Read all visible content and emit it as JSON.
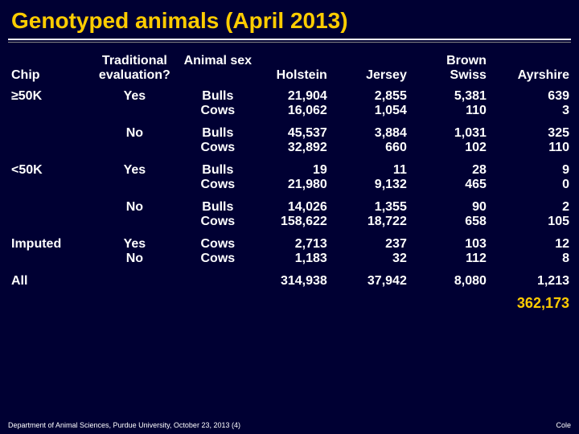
{
  "title": "Genotyped animals (April 2013)",
  "headers": {
    "chip": "Chip",
    "trad": "Traditional evaluation?",
    "sex": "Animal sex",
    "holstein": "Holstein",
    "jersey": "Jersey",
    "brownswiss_l1": "Brown",
    "brownswiss_l2": "Swiss",
    "ayrshire": "Ayrshire"
  },
  "rows": {
    "r1": {
      "chip": "≥50K",
      "trad": "Yes",
      "sex": "Bulls",
      "h": "21,904",
      "j": "2,855",
      "b": "5,381",
      "a": "639"
    },
    "r2": {
      "chip": "",
      "trad": "",
      "sex": "Cows",
      "h": "16,062",
      "j": "1,054",
      "b": "110",
      "a": "3"
    },
    "r3": {
      "chip": "",
      "trad": "No",
      "sex": "Bulls",
      "h": "45,537",
      "j": "3,884",
      "b": "1,031",
      "a": "325"
    },
    "r4": {
      "chip": "",
      "trad": "",
      "sex": "Cows",
      "h": "32,892",
      "j": "660",
      "b": "102",
      "a": "110"
    },
    "r5": {
      "chip": "<50K",
      "trad": "Yes",
      "sex": "Bulls",
      "h": "19",
      "j": "11",
      "b": "28",
      "a": "9"
    },
    "r6": {
      "chip": "",
      "trad": "",
      "sex": "Cows",
      "h": "21,980",
      "j": "9,132",
      "b": "465",
      "a": "0"
    },
    "r7": {
      "chip": "",
      "trad": "No",
      "sex": "Bulls",
      "h": "14,026",
      "j": "1,355",
      "b": "90",
      "a": "2"
    },
    "r8": {
      "chip": "",
      "trad": "",
      "sex": "Cows",
      "h": "158,622",
      "j": "18,722",
      "b": "658",
      "a": "105"
    },
    "r9": {
      "chip": "Imputed",
      "trad": "Yes",
      "sex": "Cows",
      "h": "2,713",
      "j": "237",
      "b": "103",
      "a": "12"
    },
    "r10": {
      "chip": "",
      "trad": "No",
      "sex": "Cows",
      "h": "1,183",
      "j": "32",
      "b": "112",
      "a": "8"
    },
    "r11": {
      "chip": "All",
      "trad": "",
      "sex": "",
      "h": "314,938",
      "j": "37,942",
      "b": "8,080",
      "a": "1,213"
    }
  },
  "grand_total": "362,173",
  "footer": {
    "left": "Department of Animal Sciences, Purdue University, October 23, 2013 (4)",
    "right": "Cole"
  },
  "colors": {
    "background": "#000033",
    "title": "#ffcc00",
    "text": "#ffffff",
    "grand": "#ffcc00"
  }
}
